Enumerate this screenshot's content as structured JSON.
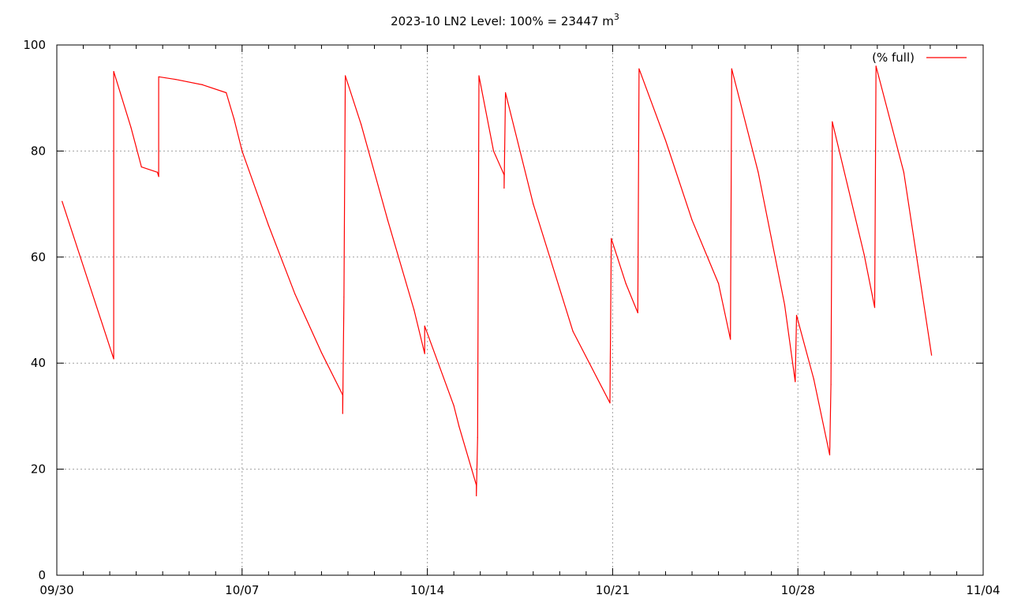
{
  "chart_data": {
    "type": "line",
    "title": "2023-10 LN2 Level: 100% = 23447 m",
    "title_superscript": "3",
    "xlabel": "",
    "ylabel": "",
    "x_unit": "days since 09/30",
    "xlim": [
      0,
      35
    ],
    "ylim": [
      0,
      100
    ],
    "x_ticks": [
      {
        "x": 0,
        "label": "09/30"
      },
      {
        "x": 7,
        "label": "10/07"
      },
      {
        "x": 14,
        "label": "10/14"
      },
      {
        "x": 21,
        "label": "10/21"
      },
      {
        "x": 28,
        "label": "10/28"
      },
      {
        "x": 35,
        "label": "11/04"
      }
    ],
    "y_ticks": [
      0,
      20,
      40,
      60,
      80,
      100
    ],
    "grid": true,
    "legend_position": "top-right",
    "series": [
      {
        "name": "(% full)",
        "color": "#ff0000",
        "points": [
          [
            0.2,
            70.5
          ],
          [
            2.15,
            40.8
          ],
          [
            2.15,
            95.0
          ],
          [
            2.8,
            84.5
          ],
          [
            3.2,
            77.0
          ],
          [
            3.8,
            76.0
          ],
          [
            3.85,
            75.2
          ],
          [
            3.85,
            94.0
          ],
          [
            4.5,
            93.5
          ],
          [
            5.5,
            92.5
          ],
          [
            6.4,
            91.0
          ],
          [
            6.7,
            86.0
          ],
          [
            7.0,
            80.0
          ],
          [
            8.0,
            66.0
          ],
          [
            9.0,
            53.0
          ],
          [
            10.0,
            42.0
          ],
          [
            10.8,
            34.0
          ],
          [
            10.8,
            30.5
          ],
          [
            10.85,
            52.5
          ],
          [
            10.9,
            94.2
          ],
          [
            11.5,
            85.0
          ],
          [
            12.5,
            67.0
          ],
          [
            13.5,
            50.0
          ],
          [
            13.9,
            41.8
          ],
          [
            13.9,
            47.0
          ],
          [
            15.0,
            32.0
          ],
          [
            15.2,
            28.0
          ],
          [
            15.85,
            17.0
          ],
          [
            15.85,
            15.0
          ],
          [
            15.9,
            26.0
          ],
          [
            15.95,
            94.2
          ],
          [
            16.5,
            80.0
          ],
          [
            16.9,
            75.5
          ],
          [
            16.9,
            73.0
          ],
          [
            16.95,
            91.0
          ],
          [
            18.0,
            70.0
          ],
          [
            19.5,
            46.0
          ],
          [
            20.9,
            32.5
          ],
          [
            20.95,
            63.5
          ],
          [
            21.5,
            55.0
          ],
          [
            21.95,
            49.5
          ],
          [
            22.0,
            95.5
          ],
          [
            23.0,
            82.0
          ],
          [
            24.0,
            67.0
          ],
          [
            25.0,
            55.0
          ],
          [
            25.45,
            44.5
          ],
          [
            25.5,
            95.5
          ],
          [
            26.5,
            76.0
          ],
          [
            27.5,
            51.0
          ],
          [
            27.9,
            36.5
          ],
          [
            27.95,
            49.0
          ],
          [
            28.6,
            37.0
          ],
          [
            29.2,
            22.7
          ],
          [
            29.25,
            36.0
          ],
          [
            29.3,
            85.5
          ],
          [
            30.5,
            60.5
          ],
          [
            30.9,
            50.5
          ],
          [
            30.95,
            96.0
          ],
          [
            32.0,
            76.0
          ],
          [
            33.05,
            41.5
          ]
        ]
      }
    ]
  }
}
